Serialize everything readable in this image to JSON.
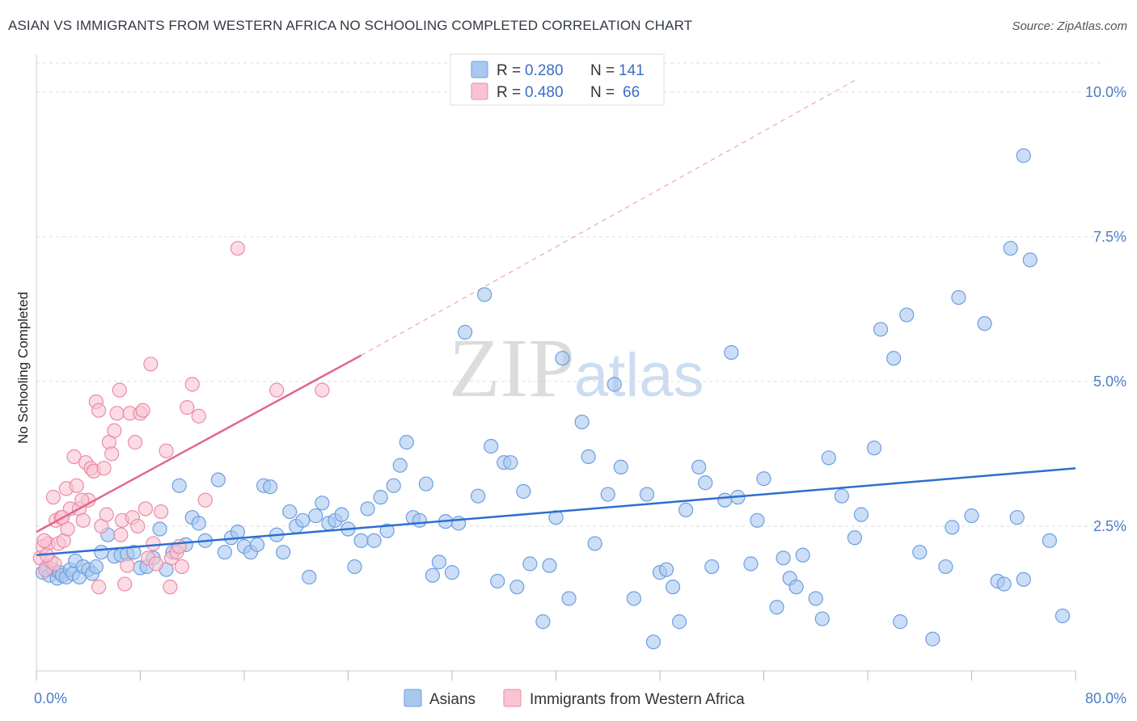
{
  "chart_data": {
    "type": "scatter",
    "title": "ASIAN VS IMMIGRANTS FROM WESTERN AFRICA NO SCHOOLING COMPLETED CORRELATION CHART",
    "source": "Source: ZipAtlas.com",
    "watermark": "ZIPatlas",
    "ylabel": "No Schooling Completed",
    "xlim": [
      0,
      80
    ],
    "ylim": [
      0,
      10.5
    ],
    "x_tick_labels": {
      "min": "0.0%",
      "max": "80.0%"
    },
    "y_ticks": [
      {
        "value": 2.5,
        "label": "2.5%"
      },
      {
        "value": 5.0,
        "label": "5.0%"
      },
      {
        "value": 7.5,
        "label": "7.5%"
      },
      {
        "value": 10.0,
        "label": "10.0%"
      }
    ],
    "grid": true,
    "legend_position": "top-center",
    "legend": [
      {
        "r_label": "R =",
        "r_value": "0.280",
        "n_label": "N =",
        "n_value": "141"
      },
      {
        "r_label": "R =",
        "r_value": "0.480",
        "n_label": "N =",
        "n_value": "66"
      }
    ],
    "series": [
      {
        "name": "Asians",
        "color": "#a8c8f0",
        "stroke": "#6d9ee0",
        "trend": {
          "x": [
            0,
            80
          ],
          "y": [
            2.0,
            3.5
          ],
          "color": "#2c6fd0"
        },
        "points": [
          [
            0.5,
            1.7
          ],
          [
            0.8,
            1.8
          ],
          [
            1.0,
            1.65
          ],
          [
            1.3,
            1.75
          ],
          [
            1.6,
            1.6
          ],
          [
            1.8,
            1.7
          ],
          [
            2.0,
            1.65
          ],
          [
            2.3,
            1.62
          ],
          [
            2.6,
            1.75
          ],
          [
            2.8,
            1.68
          ],
          [
            3.0,
            1.9
          ],
          [
            3.3,
            1.62
          ],
          [
            3.6,
            1.8
          ],
          [
            4.0,
            1.75
          ],
          [
            4.3,
            1.68
          ],
          [
            4.6,
            1.8
          ],
          [
            5.0,
            2.05
          ],
          [
            5.5,
            2.35
          ],
          [
            6.0,
            1.98
          ],
          [
            6.5,
            2.0
          ],
          [
            7.0,
            2.02
          ],
          [
            7.5,
            2.05
          ],
          [
            8.0,
            1.78
          ],
          [
            8.5,
            1.8
          ],
          [
            9.0,
            1.95
          ],
          [
            9.5,
            2.45
          ],
          [
            10.0,
            1.75
          ],
          [
            10.5,
            2.05
          ],
          [
            11.0,
            3.2
          ],
          [
            11.5,
            2.18
          ],
          [
            12.0,
            2.65
          ],
          [
            12.5,
            2.55
          ],
          [
            13.0,
            2.25
          ],
          [
            14.0,
            3.3
          ],
          [
            14.5,
            2.05
          ],
          [
            15.0,
            2.3
          ],
          [
            15.5,
            2.4
          ],
          [
            16.0,
            2.15
          ],
          [
            16.5,
            2.05
          ],
          [
            17.0,
            2.18
          ],
          [
            17.5,
            3.2
          ],
          [
            18.0,
            3.18
          ],
          [
            18.5,
            2.35
          ],
          [
            19.0,
            2.05
          ],
          [
            19.5,
            2.75
          ],
          [
            20.0,
            2.5
          ],
          [
            20.5,
            2.6
          ],
          [
            21.0,
            1.62
          ],
          [
            21.5,
            2.68
          ],
          [
            22.0,
            2.9
          ],
          [
            22.5,
            2.55
          ],
          [
            23.0,
            2.6
          ],
          [
            23.5,
            2.7
          ],
          [
            24.0,
            2.45
          ],
          [
            24.5,
            1.8
          ],
          [
            25.0,
            2.25
          ],
          [
            25.5,
            2.8
          ],
          [
            26.0,
            2.25
          ],
          [
            26.5,
            3.0
          ],
          [
            27.0,
            2.42
          ],
          [
            27.5,
            3.2
          ],
          [
            28.0,
            3.55
          ],
          [
            28.5,
            3.95
          ],
          [
            29.0,
            2.65
          ],
          [
            29.5,
            2.6
          ],
          [
            30.0,
            3.23
          ],
          [
            30.5,
            1.65
          ],
          [
            31.0,
            1.88
          ],
          [
            31.5,
            2.58
          ],
          [
            32.0,
            1.7
          ],
          [
            32.5,
            2.55
          ],
          [
            33.0,
            5.85
          ],
          [
            34.0,
            3.02
          ],
          [
            34.5,
            6.5
          ],
          [
            35.0,
            3.88
          ],
          [
            35.5,
            1.55
          ],
          [
            36.0,
            3.6
          ],
          [
            36.5,
            3.6
          ],
          [
            37.0,
            1.45
          ],
          [
            37.5,
            3.1
          ],
          [
            38.0,
            1.85
          ],
          [
            39.0,
            0.85
          ],
          [
            39.5,
            1.82
          ],
          [
            40.0,
            2.65
          ],
          [
            40.5,
            5.4
          ],
          [
            41.0,
            1.25
          ],
          [
            42.0,
            4.3
          ],
          [
            42.5,
            3.7
          ],
          [
            43.0,
            2.2
          ],
          [
            44.0,
            3.05
          ],
          [
            44.5,
            4.95
          ],
          [
            45.0,
            3.52
          ],
          [
            46.0,
            1.25
          ],
          [
            47.0,
            3.05
          ],
          [
            47.5,
            0.5
          ],
          [
            48.0,
            1.7
          ],
          [
            48.5,
            1.75
          ],
          [
            49.0,
            1.45
          ],
          [
            49.5,
            0.85
          ],
          [
            50.0,
            2.78
          ],
          [
            51.0,
            3.52
          ],
          [
            51.5,
            3.25
          ],
          [
            52.0,
            1.8
          ],
          [
            53.0,
            2.95
          ],
          [
            53.5,
            5.5
          ],
          [
            54.0,
            3.0
          ],
          [
            55.0,
            1.85
          ],
          [
            55.5,
            2.6
          ],
          [
            56.0,
            3.32
          ],
          [
            57.0,
            1.1
          ],
          [
            57.5,
            1.95
          ],
          [
            58.0,
            1.6
          ],
          [
            58.5,
            1.45
          ],
          [
            59.0,
            2.0
          ],
          [
            60.0,
            1.25
          ],
          [
            60.5,
            0.9
          ],
          [
            61.0,
            3.68
          ],
          [
            62.0,
            3.02
          ],
          [
            63.0,
            2.3
          ],
          [
            63.5,
            2.7
          ],
          [
            65.0,
            5.9
          ],
          [
            66.0,
            5.4
          ],
          [
            66.5,
            0.85
          ],
          [
            67.0,
            6.15
          ],
          [
            68.0,
            2.05
          ],
          [
            69.0,
            0.55
          ],
          [
            70.0,
            1.8
          ],
          [
            70.5,
            2.48
          ],
          [
            71.0,
            6.45
          ],
          [
            72.0,
            2.68
          ],
          [
            73.0,
            6.0
          ],
          [
            74.0,
            1.55
          ],
          [
            74.5,
            1.5
          ],
          [
            75.0,
            7.3
          ],
          [
            75.5,
            2.65
          ],
          [
            76.0,
            1.58
          ],
          [
            76.5,
            7.1
          ],
          [
            78.0,
            2.25
          ],
          [
            79.0,
            0.95
          ],
          [
            76.0,
            8.9
          ],
          [
            64.5,
            3.85
          ]
        ]
      },
      {
        "name": "Immigrants from Western Africa",
        "color": "#f8c4d2",
        "stroke": "#ec8aa8",
        "trend": {
          "x": [
            0,
            25
          ],
          "y": [
            2.4,
            5.45
          ],
          "color": "#e2658f",
          "dash_to": [
            63,
            10.2
          ]
        },
        "points": [
          [
            0.3,
            1.95
          ],
          [
            0.5,
            2.15
          ],
          [
            0.7,
            1.75
          ],
          [
            0.9,
            2.2
          ],
          [
            1.1,
            1.9
          ],
          [
            1.3,
            3.0
          ],
          [
            1.5,
            2.6
          ],
          [
            1.7,
            2.2
          ],
          [
            1.9,
            2.65
          ],
          [
            2.1,
            2.25
          ],
          [
            2.3,
            3.15
          ],
          [
            2.6,
            2.8
          ],
          [
            2.9,
            3.7
          ],
          [
            3.1,
            3.2
          ],
          [
            3.3,
            2.8
          ],
          [
            3.6,
            2.6
          ],
          [
            3.8,
            3.6
          ],
          [
            4.0,
            2.95
          ],
          [
            4.2,
            3.5
          ],
          [
            4.4,
            3.45
          ],
          [
            4.6,
            4.65
          ],
          [
            4.8,
            4.5
          ],
          [
            5.0,
            2.5
          ],
          [
            5.2,
            3.5
          ],
          [
            5.4,
            2.7
          ],
          [
            5.6,
            3.95
          ],
          [
            5.8,
            3.75
          ],
          [
            6.0,
            4.15
          ],
          [
            6.2,
            4.45
          ],
          [
            6.4,
            4.85
          ],
          [
            6.6,
            2.6
          ],
          [
            6.8,
            1.5
          ],
          [
            7.0,
            1.82
          ],
          [
            7.2,
            4.45
          ],
          [
            7.4,
            2.65
          ],
          [
            7.6,
            3.95
          ],
          [
            7.8,
            2.5
          ],
          [
            8.0,
            4.45
          ],
          [
            8.2,
            4.5
          ],
          [
            8.4,
            2.8
          ],
          [
            8.6,
            1.95
          ],
          [
            8.8,
            5.3
          ],
          [
            9.0,
            2.2
          ],
          [
            9.2,
            1.85
          ],
          [
            9.6,
            2.75
          ],
          [
            10.0,
            3.8
          ],
          [
            10.4,
            1.95
          ],
          [
            10.8,
            2.05
          ],
          [
            11.2,
            1.8
          ],
          [
            11.6,
            4.55
          ],
          [
            12.0,
            4.95
          ],
          [
            12.5,
            4.4
          ],
          [
            13.0,
            2.95
          ],
          [
            15.5,
            7.3
          ],
          [
            18.5,
            4.85
          ],
          [
            22.0,
            4.85
          ],
          [
            0.6,
            2.25
          ],
          [
            1.4,
            1.85
          ],
          [
            2.4,
            2.45
          ],
          [
            3.5,
            2.95
          ],
          [
            4.8,
            1.45
          ],
          [
            6.5,
            2.35
          ],
          [
            10.3,
            1.45
          ],
          [
            11.0,
            2.15
          ],
          [
            0.8,
            2.0
          ],
          [
            2.0,
            2.65
          ]
        ]
      }
    ]
  }
}
